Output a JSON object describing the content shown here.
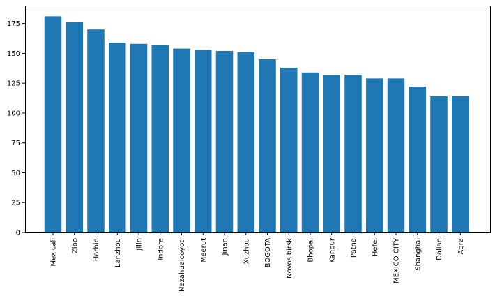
{
  "chart_data": {
    "type": "bar",
    "title": "",
    "xlabel": "",
    "ylabel": "",
    "categories": [
      "Mexicali",
      "Zibo",
      "Harbin",
      "Lanzhou",
      "Jilin",
      "Indore",
      "Nezahualcoyotl",
      "Meerut",
      "Jinan",
      "Xuzhou",
      "BOGOTA",
      "Novosibirsk",
      "Bhopal",
      "Kanpur",
      "Patna",
      "Hefei",
      "MEXICO CITY",
      "Shanghai",
      "Dalian",
      "Agra"
    ],
    "values": [
      181,
      176,
      170,
      159,
      158,
      157,
      154,
      153,
      152,
      151,
      145,
      138,
      134,
      132,
      132,
      129,
      129,
      122,
      114,
      114
    ],
    "ylim": [
      0,
      190
    ],
    "yticks": [
      0,
      25,
      50,
      75,
      100,
      125,
      150,
      175
    ],
    "bar_color": "#1f77b4",
    "grid": false,
    "legend": "none"
  }
}
